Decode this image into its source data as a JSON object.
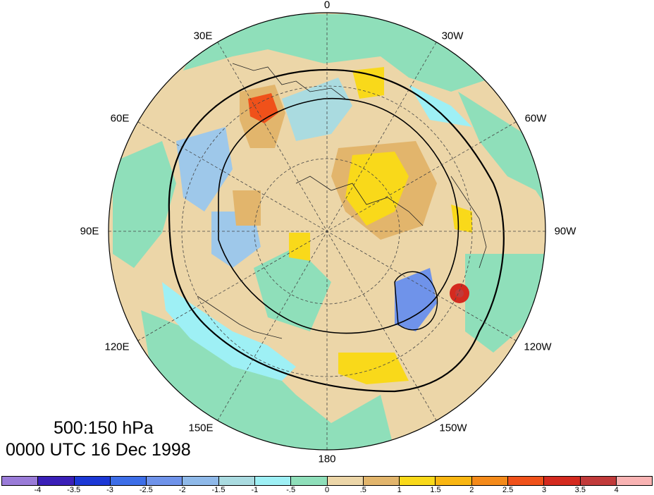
{
  "map": {
    "projection": "polar-stereographic",
    "hemisphere": "north",
    "lon_labels": {
      "l0": "0",
      "l30e": "30E",
      "l60e": "60E",
      "l90e": "90E",
      "l120e": "120E",
      "l150e": "150E",
      "l180": "180",
      "l150w": "150W",
      "l120w": "120W",
      "l90w": "90W",
      "l60w": "60W",
      "l30w": "30W"
    }
  },
  "info": {
    "level": "500:150 hPa",
    "time": "0000 UTC 16 Dec 1998"
  },
  "colorbar": {
    "colors": [
      "#9a7bd8",
      "#3a1fb8",
      "#1c38d6",
      "#3d6ee8",
      "#6f93ea",
      "#8fb9e9",
      "#aadbe0",
      "#9ef0f5",
      "#8fdfba",
      "#ecd6a8",
      "#e2b56c",
      "#f9d91a",
      "#f9b612",
      "#f48a1a",
      "#f0511a",
      "#d42a1f",
      "#c13a3a",
      "#f9b3b3"
    ],
    "ticks": [
      "-4",
      "-3.5",
      "-3",
      "-2.5",
      "-2",
      "-1.5",
      "-1",
      "-.5",
      "0",
      ".5",
      "1",
      "1.5",
      "2",
      "2.5",
      "3",
      "3.5",
      "4"
    ]
  }
}
